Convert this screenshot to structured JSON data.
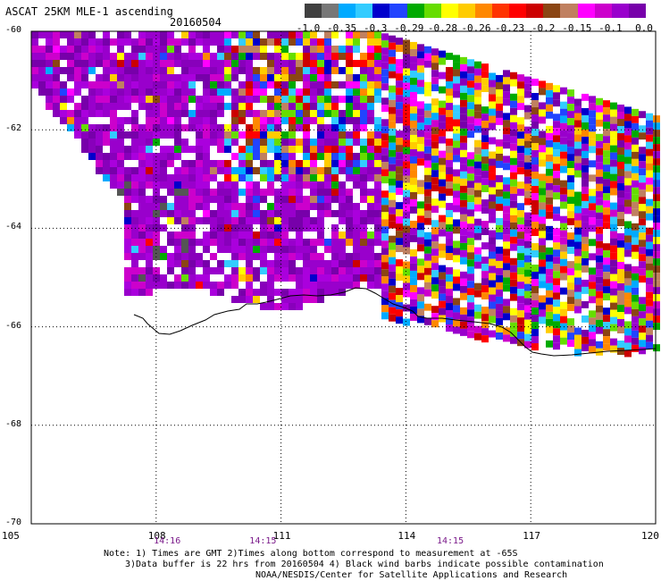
{
  "header": {
    "title": "ASCAT 25KM MLE-1 ascending",
    "date": "20160504"
  },
  "colorbar": {
    "colors": [
      "#404040",
      "#777777",
      "#00aaff",
      "#33ccff",
      "#0000cc",
      "#2244ff",
      "#00aa00",
      "#66dd00",
      "#ffff00",
      "#ffcc00",
      "#ff8800",
      "#ff3300",
      "#ff0000",
      "#cc0000",
      "#8b4513",
      "#c08060",
      "#ff00ff",
      "#cc00cc",
      "#9900cc",
      "#7700aa"
    ],
    "labels": [
      "-1.0",
      "-0.35",
      "-0.3",
      "-0.29",
      "-0.28",
      "-0.26",
      "-0.23",
      "-0.2",
      "-0.15",
      "-0.1",
      "0.0"
    ]
  },
  "axes": {
    "lat_labels": [
      "-60",
      "-62",
      "-64",
      "-66",
      "-68",
      "-70"
    ],
    "lon_labels": [
      "105",
      "108",
      "111",
      "114",
      "117",
      "120"
    ],
    "lat_range": [
      -70,
      -60
    ],
    "lon_range": [
      105,
      120
    ]
  },
  "times": [
    {
      "lon": 108.2,
      "label": "14:16"
    },
    {
      "lon": 110.5,
      "label": "14:15"
    },
    {
      "lon": 115.0,
      "label": "14:15"
    }
  ],
  "notes": {
    "line1": "Note: 1) Times are GMT 2)Times along bottom correspond to measurement at -65S",
    "line2": "3)Data buffer is 22 hrs from 20160504 4) Black wind barbs indicate possible contamination",
    "line3": "NOAA/NESDIS/Center for Satellite Applications and Research"
  }
}
